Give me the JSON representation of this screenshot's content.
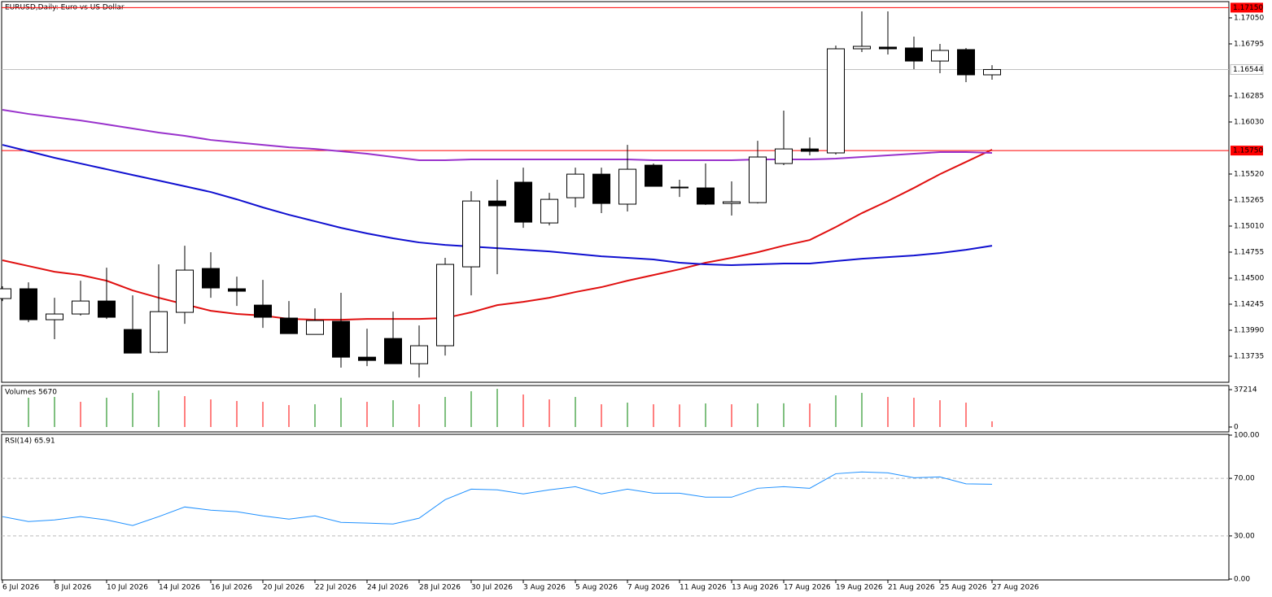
{
  "chart_data": [
    {
      "type": "candlestick",
      "title": "EURUSD,Daily:  Euro vs US Dollar",
      "categories": [
        "6 Jul 2026",
        null,
        "8 Jul 2026",
        null,
        "10 Jul 2026",
        null,
        "14 Jul 2026",
        null,
        "16 Jul 2026",
        null,
        "20 Jul 2026",
        null,
        "22 Jul 2026",
        null,
        "24 Jul 2026",
        null,
        "28 Jul 2026",
        null,
        "30 Jul 2026",
        null,
        "3 Aug 2026",
        null,
        "5 Aug 2026",
        null,
        "7 Aug 2026",
        null,
        "11 Aug 2026",
        null,
        "13 Aug 2026",
        null,
        "17 Aug 2026",
        null,
        "19 Aug 2026",
        null,
        "21 Aug 2026",
        null,
        "25 Aug 2026",
        null,
        "27 Aug 2026"
      ],
      "open": [
        1.143,
        1.14396,
        1.14093,
        1.14149,
        1.14276,
        1.13997,
        1.13774,
        1.14165,
        1.14595,
        1.14396,
        1.14236,
        1.14109,
        1.13949,
        1.14077,
        1.13726,
        1.13909,
        1.13662,
        1.13838,
        1.14611,
        1.15256,
        1.1544,
        1.15041,
        1.15288,
        1.15519,
        1.15225,
        1.15607,
        1.15392,
        1.15384,
        1.15232,
        1.1524,
        1.15623,
        1.15766,
        1.15727,
        1.16747,
        1.16763,
        1.16755,
        1.16627,
        1.16739,
        1.16492
      ],
      "high": [
        1.1442,
        1.14459,
        1.14308,
        1.14475,
        1.14603,
        1.14332,
        1.14635,
        1.14818,
        1.14754,
        1.14515,
        1.14483,
        1.14276,
        1.14204,
        1.14356,
        1.14005,
        1.14172,
        1.14037,
        1.14699,
        1.15352,
        1.15464,
        1.15583,
        1.15336,
        1.15583,
        1.15583,
        1.15806,
        1.15623,
        1.15464,
        1.15623,
        1.15448,
        1.15846,
        1.16141,
        1.15878,
        1.16779,
        1.17113,
        1.17113,
        1.16866,
        1.16795,
        1.16755,
        1.16587
      ],
      "low": [
        1.14276,
        1.14069,
        1.13902,
        1.14133,
        1.14101,
        1.13766,
        1.13766,
        1.14053,
        1.14308,
        1.14228,
        1.14013,
        1.13957,
        1.13949,
        1.13623,
        1.13638,
        1.13662,
        1.13527,
        1.13742,
        1.14332,
        1.14539,
        1.14993,
        1.15017,
        1.15193,
        1.15137,
        1.15153,
        1.154,
        1.15296,
        1.15217,
        1.15113,
        1.15232,
        1.15607,
        1.15703,
        1.15711,
        1.16715,
        1.16691,
        1.16548,
        1.16508,
        1.1642,
        1.16444
      ],
      "close": [
        1.14396,
        1.14093,
        1.14149,
        1.14276,
        1.14117,
        1.13766,
        1.14172,
        1.14579,
        1.14404,
        1.14372,
        1.14117,
        1.13957,
        1.14085,
        1.13726,
        1.13694,
        1.13662,
        1.13838,
        1.14635,
        1.15256,
        1.15209,
        1.15049,
        1.15272,
        1.15519,
        1.15232,
        1.15567,
        1.154,
        1.15384,
        1.15225,
        1.15248,
        1.15687,
        1.15766,
        1.15743,
        1.16747,
        1.16771,
        1.16747,
        1.16627,
        1.16731,
        1.16492,
        1.16544
      ],
      "up_color": "#ffffff",
      "down_color": "#000000",
      "series": [
        {
          "color": "#e01010",
          "values": [
            1.14675,
            1.14619,
            1.14563,
            1.14531,
            1.14475,
            1.1438,
            1.14308,
            1.14244,
            1.1418,
            1.14149,
            1.14133,
            1.14101,
            1.14093,
            1.14093,
            1.14101,
            1.14101,
            1.14101,
            1.14109,
            1.14165,
            1.14236,
            1.14268,
            1.14308,
            1.14364,
            1.14412,
            1.14475,
            1.14531,
            1.14587,
            1.14651,
            1.14699,
            1.14754,
            1.14818,
            1.14874,
            1.15001,
            1.15137,
            1.15256,
            1.15384,
            1.15519,
            1.15639,
            1.15759
          ]
        },
        {
          "color": "#1010d0",
          "values": [
            1.15806,
            1.15743,
            1.15679,
            1.15623,
            1.15567,
            1.15511,
            1.15456,
            1.154,
            1.15344,
            1.15272,
            1.15193,
            1.15121,
            1.15057,
            1.14993,
            1.14938,
            1.1489,
            1.1485,
            1.14826,
            1.1481,
            1.14794,
            1.14778,
            1.14762,
            1.14738,
            1.14714,
            1.14699,
            1.14683,
            1.14651,
            1.14635,
            1.14627,
            1.14635,
            1.14643,
            1.14643,
            1.14667,
            1.1469,
            1.14706,
            1.14722,
            1.14746,
            1.14778,
            1.14818
          ]
        },
        {
          "color": "#9932cc",
          "values": [
            1.16149,
            1.16109,
            1.16077,
            1.16045,
            1.16006,
            1.15966,
            1.15926,
            1.15894,
            1.15854,
            1.1583,
            1.15806,
            1.15782,
            1.15766,
            1.15743,
            1.15719,
            1.15687,
            1.15655,
            1.15655,
            1.15663,
            1.15663,
            1.15663,
            1.15663,
            1.15663,
            1.15663,
            1.15663,
            1.15655,
            1.15655,
            1.15655,
            1.15655,
            1.15663,
            1.15663,
            1.15663,
            1.15671,
            1.15687,
            1.15703,
            1.15719,
            1.15735,
            1.15735,
            1.15727
          ]
        }
      ],
      "ylim": [
        1.1348,
        1.17225
      ],
      "yticks": [
        {
          "value": 1.1705,
          "label": "1.17050"
        },
        {
          "value": 1.16795,
          "label": "1.16795"
        },
        {
          "value": 1.16285,
          "label": "1.16285"
        },
        {
          "value": 1.1603,
          "label": "1.16030"
        },
        {
          "value": 1.1552,
          "label": "1.15520"
        },
        {
          "value": 1.15265,
          "label": "1.15265"
        },
        {
          "value": 1.1501,
          "label": "1.15010"
        },
        {
          "value": 1.14755,
          "label": "1.14755"
        },
        {
          "value": 1.145,
          "label": "1.14500"
        },
        {
          "value": 1.14245,
          "label": "1.14245"
        },
        {
          "value": 1.1399,
          "label": "1.13990"
        },
        {
          "value": 1.13735,
          "label": "1.13735"
        }
      ],
      "hlines": [
        {
          "value": 1.1715,
          "label": "1.17150",
          "color": "#ff0000"
        },
        {
          "value": 1.1575,
          "label": "1.15750",
          "color": "#ff0000"
        }
      ],
      "last_price": {
        "value": 1.16544,
        "label": "1.16544",
        "color": "#c0c0c0"
      }
    },
    {
      "type": "bar",
      "title": "Volumes 5670",
      "values": [
        null,
        29124,
        29933,
        25079,
        29124,
        33978,
        36405,
        30742,
        27506,
        25888,
        25079,
        21843,
        22652,
        29124,
        25079,
        26697,
        22652,
        29933,
        35596,
        38023,
        32360,
        27506,
        29933,
        22652,
        24270,
        22652,
        22500,
        23461,
        22652,
        23461,
        23600,
        23461,
        31551,
        33978,
        29933,
        29124,
        26697,
        24270,
        5670
      ],
      "up_color": "#008000",
      "down_color": "#ff0000",
      "ylim": [
        0,
        41300
      ],
      "yticks": [
        37214,
        0
      ]
    },
    {
      "type": "line",
      "title": "RSI(14) 65.91",
      "values": [
        43.4,
        40.0,
        41.1,
        43.4,
        41.1,
        37.2,
        43.4,
        50.1,
        47.9,
        46.8,
        43.9,
        41.7,
        43.9,
        39.4,
        38.9,
        38.3,
        42.3,
        55.2,
        62.5,
        62.0,
        59.2,
        62.0,
        64.2,
        59.2,
        62.5,
        59.7,
        59.7,
        56.9,
        56.9,
        63.1,
        64.2,
        63.1,
        73.2,
        74.4,
        73.8,
        70.4,
        71.0,
        66.2,
        65.91
      ],
      "color": "#1e90ff",
      "ylim": [
        0,
        100
      ],
      "yticks": [
        {
          "value": 100,
          "label": "100.00"
        },
        {
          "value": 70,
          "label": "70.00"
        },
        {
          "value": 30,
          "label": "30.00"
        },
        {
          "value": 0,
          "label": "0.00"
        }
      ],
      "levels": [
        70,
        30
      ]
    }
  ]
}
